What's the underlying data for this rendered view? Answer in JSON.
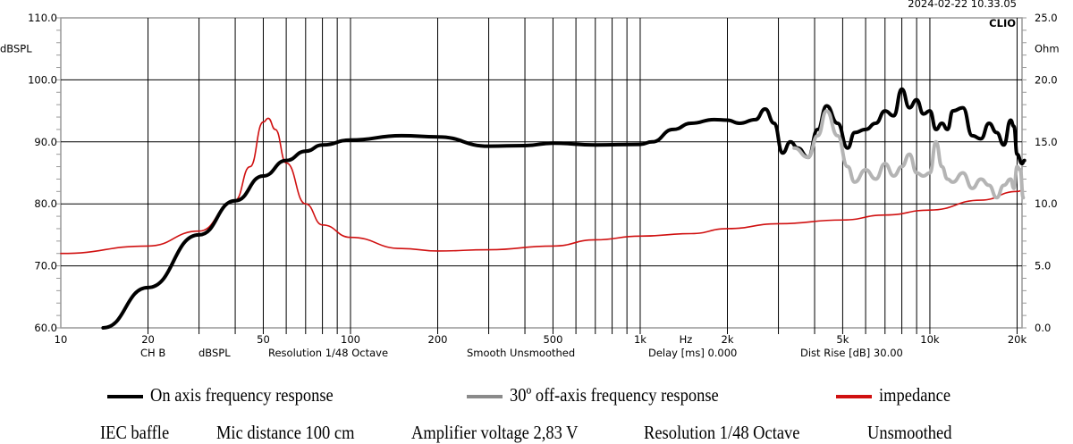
{
  "chart_data": {
    "type": "line",
    "timestamp": "2024-02-22 10.33.05",
    "brand_label": "CLIO",
    "left_axis": {
      "unit": "dBSPL",
      "ylim": [
        60,
        110
      ],
      "ticks": [
        "60.0",
        "70.0",
        "80.0",
        "90.0",
        "100.0",
        "110.0"
      ]
    },
    "right_axis": {
      "unit": "Ohm",
      "ylim": [
        0,
        25
      ],
      "ticks": [
        "0.0",
        "5.0",
        "10.0",
        "15.0",
        "20.0",
        "25.0"
      ]
    },
    "x_axis": {
      "unit": "Hz",
      "scale": "log",
      "xlim": [
        10,
        20800
      ],
      "ticks": [
        {
          "v": 10,
          "l": "10"
        },
        {
          "v": 20,
          "l": "20"
        },
        {
          "v": 50,
          "l": "50"
        },
        {
          "v": 100,
          "l": "100"
        },
        {
          "v": 200,
          "l": "200"
        },
        {
          "v": 500,
          "l": "500"
        },
        {
          "v": 1000,
          "l": "1k"
        },
        {
          "v": 2000,
          "l": "2k"
        },
        {
          "v": 5000,
          "l": "5k"
        },
        {
          "v": 10000,
          "l": "10k"
        },
        {
          "v": 20000,
          "l": "20k"
        }
      ]
    },
    "info_line": [
      "CH B",
      "dBSPL",
      "Resolution 1/48 Octave",
      "Smooth Unsmoothed",
      "Delay [ms] 0.000",
      "Dist Rise [dB] 30.00"
    ],
    "series": [
      {
        "name": "On axis frequency response",
        "axis": "left",
        "color": "#000000",
        "points": [
          [
            14,
            60
          ],
          [
            20,
            66.5
          ],
          [
            30,
            75
          ],
          [
            40,
            80.5
          ],
          [
            50,
            84.5
          ],
          [
            60,
            87
          ],
          [
            70,
            88.5
          ],
          [
            80,
            89.5
          ],
          [
            100,
            90.3
          ],
          [
            150,
            91
          ],
          [
            200,
            90.8
          ],
          [
            300,
            89.3
          ],
          [
            400,
            89.4
          ],
          [
            500,
            89.8
          ],
          [
            700,
            89.5
          ],
          [
            1000,
            89.6
          ],
          [
            1100,
            90
          ],
          [
            1300,
            92
          ],
          [
            1500,
            93
          ],
          [
            1800,
            93.6
          ],
          [
            2000,
            93.5
          ],
          [
            2200,
            93
          ],
          [
            2500,
            93.6
          ],
          [
            2700,
            95.3
          ],
          [
            2900,
            93
          ],
          [
            3100,
            88.2
          ],
          [
            3300,
            90
          ],
          [
            3500,
            89
          ],
          [
            3800,
            87.5
          ],
          [
            4100,
            92
          ],
          [
            4400,
            95.8
          ],
          [
            4800,
            93
          ],
          [
            5200,
            89
          ],
          [
            5500,
            91.5
          ],
          [
            6000,
            92
          ],
          [
            6500,
            93
          ],
          [
            7000,
            95
          ],
          [
            7500,
            94.2
          ],
          [
            8000,
            98.5
          ],
          [
            8500,
            95.5
          ],
          [
            9000,
            96.8
          ],
          [
            9500,
            94.5
          ],
          [
            10000,
            95
          ],
          [
            10500,
            92
          ],
          [
            11000,
            93
          ],
          [
            11500,
            92
          ],
          [
            12000,
            95
          ],
          [
            13000,
            95.5
          ],
          [
            14000,
            91
          ],
          [
            15000,
            90.5
          ],
          [
            16000,
            93
          ],
          [
            17000,
            91.5
          ],
          [
            18000,
            89.5
          ],
          [
            19000,
            93.5
          ],
          [
            19500,
            92.5
          ],
          [
            20000,
            88
          ],
          [
            20800,
            86.5
          ],
          [
            21200,
            87
          ]
        ]
      },
      {
        "name": "30º off-axis frequency response",
        "axis": "left",
        "color": "#b4b4b4",
        "points": [
          [
            3400,
            89
          ],
          [
            3800,
            87.5
          ],
          [
            4100,
            91
          ],
          [
            4400,
            95
          ],
          [
            4800,
            91
          ],
          [
            5200,
            86
          ],
          [
            5500,
            83.5
          ],
          [
            6000,
            85.5
          ],
          [
            6500,
            84
          ],
          [
            7000,
            86.5
          ],
          [
            7500,
            84.5
          ],
          [
            8000,
            86
          ],
          [
            8500,
            88
          ],
          [
            9000,
            85
          ],
          [
            9500,
            84.5
          ],
          [
            10000,
            85
          ],
          [
            10500,
            90
          ],
          [
            11000,
            86
          ],
          [
            11500,
            84
          ],
          [
            12000,
            83.5
          ],
          [
            13000,
            85
          ],
          [
            14000,
            82.5
          ],
          [
            15000,
            84
          ],
          [
            16000,
            83
          ],
          [
            17000,
            81
          ],
          [
            18000,
            83
          ],
          [
            19000,
            84
          ],
          [
            19500,
            82.5
          ],
          [
            20000,
            86
          ],
          [
            20500,
            85.5
          ],
          [
            21000,
            81
          ]
        ]
      },
      {
        "name": "impedance",
        "axis": "right",
        "color": "#d01010",
        "points": [
          [
            10,
            6
          ],
          [
            20,
            6.6
          ],
          [
            30,
            7.8
          ],
          [
            40,
            10.3
          ],
          [
            45,
            13
          ],
          [
            50,
            16.6
          ],
          [
            52,
            16.9
          ],
          [
            55,
            16
          ],
          [
            60,
            13.3
          ],
          [
            70,
            10
          ],
          [
            80,
            8.3
          ],
          [
            100,
            7.3
          ],
          [
            150,
            6.4
          ],
          [
            200,
            6.2
          ],
          [
            300,
            6.3
          ],
          [
            500,
            6.6
          ],
          [
            700,
            7.1
          ],
          [
            1000,
            7.4
          ],
          [
            1500,
            7.6
          ],
          [
            2000,
            8
          ],
          [
            3000,
            8.4
          ],
          [
            5000,
            8.7
          ],
          [
            7000,
            9.1
          ],
          [
            10000,
            9.5
          ],
          [
            15000,
            10.3
          ],
          [
            20000,
            11
          ],
          [
            21000,
            11.1
          ]
        ]
      }
    ]
  },
  "legend": {
    "on_axis": "On axis frequency response",
    "off_axis": "30º off-axis frequency response",
    "impedance": "impedance"
  },
  "conditions": [
    "IEC baffle",
    "Mic distance 100 cm",
    "Amplifier voltage 2,83 V",
    "Resolution 1/48 Octave",
    "Unsmoothed"
  ]
}
